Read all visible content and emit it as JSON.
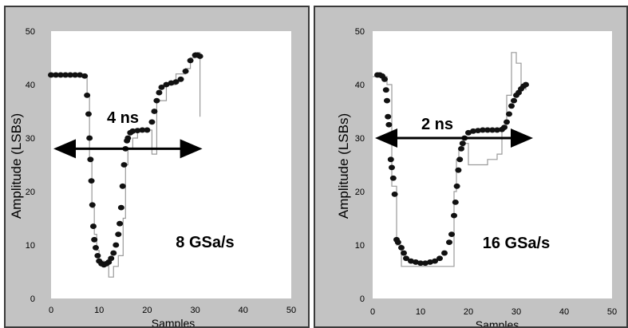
{
  "chart_data": [
    {
      "type": "scatter",
      "xlabel": "Samples",
      "ylabel": "Amplitude (LSBs)",
      "xlim": [
        0,
        50
      ],
      "ylim": [
        0,
        50
      ],
      "xticks": [
        "0",
        "10",
        "20",
        "30",
        "40",
        "50"
      ],
      "yticks": [
        "0",
        "10",
        "20",
        "30",
        "40",
        "50"
      ],
      "annotations": {
        "interval": "4 ns",
        "rate": "8 GSa/s"
      },
      "arrow": {
        "x_start": 0.5,
        "x_end": 31.5,
        "y": 28
      },
      "series": [
        {
          "style": "step-line",
          "points": [
            [
              0,
              41.5
            ],
            [
              7,
              41.5
            ],
            [
              7.5,
              38
            ],
            [
              8,
              26
            ],
            [
              8.5,
              17
            ],
            [
              9,
              12
            ],
            [
              9.5,
              9
            ],
            [
              10,
              7
            ],
            [
              11,
              6.5
            ],
            [
              12,
              4
            ],
            [
              13,
              6
            ],
            [
              14,
              8
            ],
            [
              15,
              15
            ],
            [
              15.5,
              25
            ],
            [
              16,
              28
            ],
            [
              17,
              30
            ],
            [
              18,
              31.5
            ],
            [
              20,
              31.5
            ],
            [
              21,
              27
            ],
            [
              22,
              37
            ],
            [
              24,
              40
            ],
            [
              26,
              42
            ],
            [
              28,
              43
            ],
            [
              29,
              45
            ],
            [
              30,
              46
            ],
            [
              30.5,
              46
            ],
            [
              31,
              34
            ]
          ]
        },
        {
          "style": "markers",
          "points": [
            [
              0,
              41.8
            ],
            [
              1,
              41.8
            ],
            [
              2,
              41.8
            ],
            [
              3,
              41.8
            ],
            [
              4,
              41.8
            ],
            [
              5,
              41.8
            ],
            [
              6,
              41.8
            ],
            [
              7,
              41.6
            ],
            [
              7.5,
              38
            ],
            [
              7.8,
              34.5
            ],
            [
              8,
              30
            ],
            [
              8.2,
              26
            ],
            [
              8.4,
              22
            ],
            [
              8.6,
              17.5
            ],
            [
              8.8,
              13.5
            ],
            [
              9,
              11
            ],
            [
              9.3,
              9.5
            ],
            [
              9.7,
              8
            ],
            [
              10,
              7
            ],
            [
              10.5,
              6.5
            ],
            [
              11,
              6.3
            ],
            [
              11.5,
              6.5
            ],
            [
              12,
              6.8
            ],
            [
              12.5,
              7.5
            ],
            [
              13,
              8.5
            ],
            [
              13.5,
              10
            ],
            [
              14,
              12
            ],
            [
              14.3,
              14
            ],
            [
              14.6,
              17
            ],
            [
              14.9,
              21
            ],
            [
              15.2,
              25
            ],
            [
              15.5,
              28
            ],
            [
              15.8,
              29.5
            ],
            [
              16,
              30
            ],
            [
              16.5,
              31
            ],
            [
              17,
              31.3
            ],
            [
              18,
              31.4
            ],
            [
              19,
              31.5
            ],
            [
              20,
              31.5
            ],
            [
              21,
              33
            ],
            [
              21.5,
              35
            ],
            [
              22,
              37
            ],
            [
              22.5,
              38.5
            ],
            [
              23,
              39.5
            ],
            [
              24,
              40
            ],
            [
              25,
              40.3
            ],
            [
              26,
              40.5
            ],
            [
              27,
              41
            ],
            [
              28,
              42.5
            ],
            [
              29,
              44.5
            ],
            [
              30,
              45.5
            ],
            [
              30.5,
              45.5
            ],
            [
              31,
              45.3
            ]
          ]
        }
      ]
    },
    {
      "type": "scatter",
      "xlabel": "Samples",
      "ylabel": "Amplitude (LSBs)",
      "xlim": [
        0,
        50
      ],
      "ylim": [
        0,
        50
      ],
      "xticks": [
        "0",
        "10",
        "20",
        "30",
        "40",
        "50"
      ],
      "yticks": [
        "0",
        "10",
        "20",
        "30",
        "40",
        "50"
      ],
      "annotations": {
        "interval": "2 ns",
        "rate": "16 GSa/s"
      },
      "arrow": {
        "x_start": 0.5,
        "x_end": 33.5,
        "y": 30
      },
      "series": [
        {
          "style": "step-line",
          "points": [
            [
              0,
              41.5
            ],
            [
              2,
              41.5
            ],
            [
              3,
              40
            ],
            [
              4,
              21
            ],
            [
              5,
              10
            ],
            [
              6,
              6
            ],
            [
              9,
              6
            ],
            [
              16,
              6
            ],
            [
              17,
              20
            ],
            [
              17.5,
              26
            ],
            [
              18,
              28
            ],
            [
              19,
              29
            ],
            [
              20,
              25
            ],
            [
              22,
              25
            ],
            [
              24,
              26
            ],
            [
              26,
              27
            ],
            [
              27,
              32
            ],
            [
              28,
              38
            ],
            [
              29,
              46
            ],
            [
              30,
              44
            ],
            [
              31,
              40
            ],
            [
              32,
              39
            ]
          ]
        },
        {
          "style": "markers",
          "points": [
            [
              1,
              41.8
            ],
            [
              1.5,
              41.8
            ],
            [
              2,
              41.6
            ],
            [
              2.5,
              41
            ],
            [
              2.8,
              39
            ],
            [
              3,
              37
            ],
            [
              3.2,
              34
            ],
            [
              3.4,
              32.5
            ],
            [
              3.6,
              30
            ],
            [
              3.8,
              26
            ],
            [
              4,
              24.5
            ],
            [
              4.3,
              22.5
            ],
            [
              4.6,
              19.5
            ],
            [
              5,
              11
            ],
            [
              5.3,
              10.5
            ],
            [
              6,
              9.5
            ],
            [
              6.5,
              8.5
            ],
            [
              7,
              7.5
            ],
            [
              8,
              7
            ],
            [
              9,
              6.8
            ],
            [
              10,
              6.6
            ],
            [
              11,
              6.6
            ],
            [
              12,
              6.8
            ],
            [
              13,
              7
            ],
            [
              14,
              7.5
            ],
            [
              15,
              8.5
            ],
            [
              16,
              10.5
            ],
            [
              16.5,
              12
            ],
            [
              17,
              15.5
            ],
            [
              17.3,
              18
            ],
            [
              17.6,
              21
            ],
            [
              17.9,
              24
            ],
            [
              18.2,
              26
            ],
            [
              18.5,
              28
            ],
            [
              18.8,
              29
            ],
            [
              19.2,
              30
            ],
            [
              20,
              31
            ],
            [
              21,
              31.3
            ],
            [
              22,
              31.4
            ],
            [
              23,
              31.5
            ],
            [
              24,
              31.5
            ],
            [
              25,
              31.5
            ],
            [
              26,
              31.5
            ],
            [
              27,
              31.6
            ],
            [
              27.5,
              32
            ],
            [
              28,
              33
            ],
            [
              28.5,
              34.5
            ],
            [
              29,
              36
            ],
            [
              29.5,
              37
            ],
            [
              30,
              38
            ],
            [
              30.5,
              38.5
            ],
            [
              31,
              39.2
            ],
            [
              31.5,
              39.7
            ],
            [
              32,
              40
            ]
          ]
        }
      ]
    }
  ]
}
